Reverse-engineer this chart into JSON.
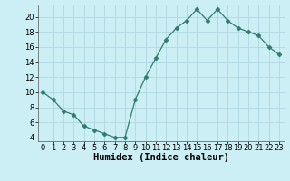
{
  "xlabel": "Humidex (Indice chaleur)",
  "x_values": [
    0,
    1,
    2,
    3,
    4,
    5,
    6,
    7,
    8,
    9,
    10,
    11,
    12,
    13,
    14,
    15,
    16,
    17,
    18,
    19,
    20,
    21,
    22,
    23
  ],
  "y_values": [
    10,
    9,
    7.5,
    7,
    5.5,
    5,
    4.5,
    4,
    4,
    9,
    12,
    14.5,
    17,
    18.5,
    19.5,
    21,
    19.5,
    21,
    19.5,
    18.5,
    18,
    17.5,
    16,
    15
  ],
  "ylim": [
    3.5,
    21.5
  ],
  "xlim": [
    -0.5,
    23.5
  ],
  "yticks": [
    4,
    6,
    8,
    10,
    12,
    14,
    16,
    18,
    20
  ],
  "ytick_labels": [
    "4",
    "6",
    "8",
    "10",
    "12",
    "14",
    "16",
    "18",
    "20"
  ],
  "xticks": [
    0,
    1,
    2,
    3,
    4,
    5,
    6,
    7,
    8,
    9,
    10,
    11,
    12,
    13,
    14,
    15,
    16,
    17,
    18,
    19,
    20,
    21,
    22,
    23
  ],
  "xtick_labels": [
    "0",
    "1",
    "2",
    "3",
    "4",
    "5",
    "6",
    "7",
    "8",
    "9",
    "10",
    "11",
    "12",
    "13",
    "14",
    "15",
    "16",
    "17",
    "18",
    "19",
    "20",
    "21",
    "22",
    "23"
  ],
  "line_color": "#2e7d6e",
  "marker": "D",
  "marker_size": 2.5,
  "bg_color": "#cceef5",
  "grid_color": "#b0d8e0",
  "tick_label_fontsize": 6,
  "xlabel_fontsize": 7.5
}
